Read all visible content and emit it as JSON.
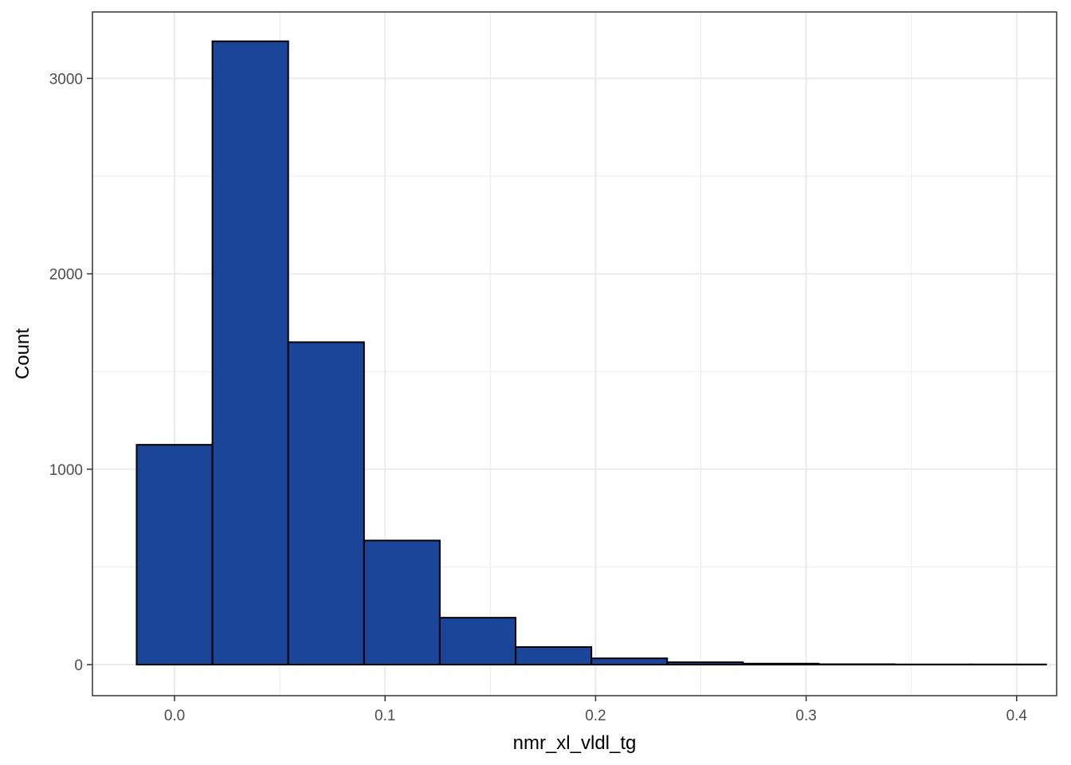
{
  "chart_data": {
    "type": "bar",
    "title": "",
    "xlabel": "nmr_xl_vldl_tg",
    "ylabel": "Count",
    "bins": [
      {
        "x0": -0.018,
        "x1": 0.018,
        "count": 1125
      },
      {
        "x0": 0.018,
        "x1": 0.054,
        "count": 3190
      },
      {
        "x0": 0.054,
        "x1": 0.09,
        "count": 1650
      },
      {
        "x0": 0.09,
        "x1": 0.126,
        "count": 635
      },
      {
        "x0": 0.126,
        "x1": 0.162,
        "count": 240
      },
      {
        "x0": 0.162,
        "x1": 0.198,
        "count": 90
      },
      {
        "x0": 0.198,
        "x1": 0.234,
        "count": 32
      },
      {
        "x0": 0.234,
        "x1": 0.27,
        "count": 12
      },
      {
        "x0": 0.27,
        "x1": 0.306,
        "count": 5
      },
      {
        "x0": 0.306,
        "x1": 0.342,
        "count": 2
      },
      {
        "x0": 0.342,
        "x1": 0.378,
        "count": 1
      },
      {
        "x0": 0.378,
        "x1": 0.414,
        "count": 1
      }
    ],
    "xlim": [
      -0.039,
      0.419
    ],
    "ylim": [
      -159,
      3340
    ],
    "x_ticks": [
      0.0,
      0.1,
      0.2,
      0.3,
      0.4
    ],
    "x_tick_labels": [
      "0.0",
      "0.1",
      "0.2",
      "0.3",
      "0.4"
    ],
    "y_ticks": [
      0,
      1000,
      2000,
      3000
    ],
    "y_tick_labels": [
      "0",
      "1000",
      "2000",
      "3000"
    ],
    "grid": true,
    "legend": "none",
    "colors": {
      "fill": "#1a4599",
      "outline": "#000000",
      "grid": "#ebebeb",
      "panel_border": "#333333"
    }
  }
}
